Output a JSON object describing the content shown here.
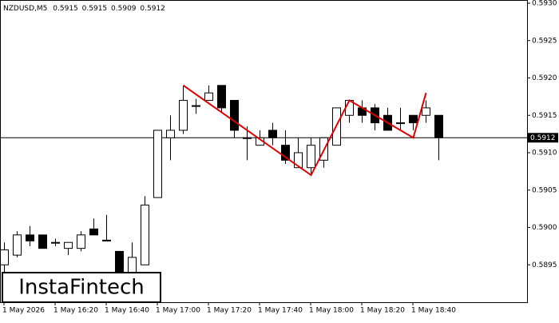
{
  "chart_data": {
    "type": "candlestick",
    "title": "NZDUSD,M5",
    "watermark": "InstaFintech",
    "categories": [
      "1 May 2026",
      null,
      null,
      null,
      "1 May 16:20",
      null,
      null,
      null,
      "1 May 16:40",
      null,
      null,
      null,
      "1 May 17:00",
      null,
      null,
      null,
      "1 May 17:20",
      null,
      null,
      null,
      "1 May 17:40",
      null,
      null,
      null,
      "1 May 18:00",
      null,
      null,
      null,
      "1 May 18:20",
      null,
      null,
      null,
      "1 May 18:40",
      null,
      null
    ],
    "open": [
      0.5895,
      0.58963,
      0.5899,
      0.5899,
      0.5898,
      0.58972,
      0.58972,
      0.58998,
      0.58983,
      0.58968,
      0.58935,
      0.5895,
      0.5904,
      0.5912,
      0.5913,
      0.59163,
      0.5917,
      0.5919,
      0.5917,
      0.5912,
      0.5911,
      0.5913,
      0.5911,
      0.5908,
      0.5908,
      0.5909,
      0.5911,
      0.5915,
      0.5916,
      0.5916,
      0.5915,
      0.5914,
      0.5915,
      0.5915,
      0.5915
    ],
    "high": [
      0.5898,
      0.58995,
      0.59002,
      0.5899,
      0.58985,
      0.5898,
      0.58995,
      0.59012,
      0.59017,
      0.58968,
      0.5898,
      0.59042,
      0.5913,
      0.5915,
      0.5919,
      0.59172,
      0.5919,
      0.5919,
      0.5917,
      0.59135,
      0.5913,
      0.5914,
      0.5913,
      0.5912,
      0.5912,
      0.5912,
      0.5916,
      0.5917,
      0.5917,
      0.59165,
      0.5916,
      0.5916,
      0.5915,
      0.5917,
      0.5915
    ],
    "low": [
      0.5894,
      0.5896,
      0.58975,
      0.58972,
      0.58975,
      0.58963,
      0.58968,
      0.5899,
      0.58982,
      0.5893,
      0.5893,
      0.5895,
      0.5904,
      0.5909,
      0.59125,
      0.59152,
      0.5917,
      0.59155,
      0.5912,
      0.5909,
      0.5911,
      0.5911,
      0.59085,
      0.5908,
      0.59072,
      0.5908,
      0.5911,
      0.5914,
      0.5914,
      0.5913,
      0.5913,
      0.5913,
      0.5913,
      0.5914,
      0.5909
    ],
    "close": [
      0.5897,
      0.5899,
      0.58982,
      0.58972,
      0.5898,
      0.5898,
      0.5899,
      0.5899,
      0.58983,
      0.58935,
      0.5896,
      0.5903,
      0.5913,
      0.5913,
      0.5917,
      0.59163,
      0.5918,
      0.5916,
      0.5913,
      0.5912,
      0.5912,
      0.5912,
      0.5909,
      0.591,
      0.5911,
      0.5912,
      0.5916,
      0.5917,
      0.5915,
      0.5914,
      0.5913,
      0.5914,
      0.5914,
      0.5916,
      0.5912
    ],
    "current_price": 0.5912,
    "pattern_line": {
      "color": "#e00000",
      "x": [
        14,
        24,
        27,
        32,
        33
      ],
      "y": [
        0.5919,
        0.5907,
        0.5917,
        0.5912,
        0.5918
      ]
    },
    "ylim": [
      0.589,
      0.593
    ],
    "yticks": [
      {
        "value": 0.593,
        "label": "0.5930"
      },
      0.5925,
      {
        "value": 0.592,
        "label": "0.5920"
      },
      0.5915,
      {
        "value": 0.591,
        "label": "0.5910"
      },
      0.5905,
      {
        "value": 0.59,
        "label": "0.5900"
      },
      0.5895
    ]
  }
}
